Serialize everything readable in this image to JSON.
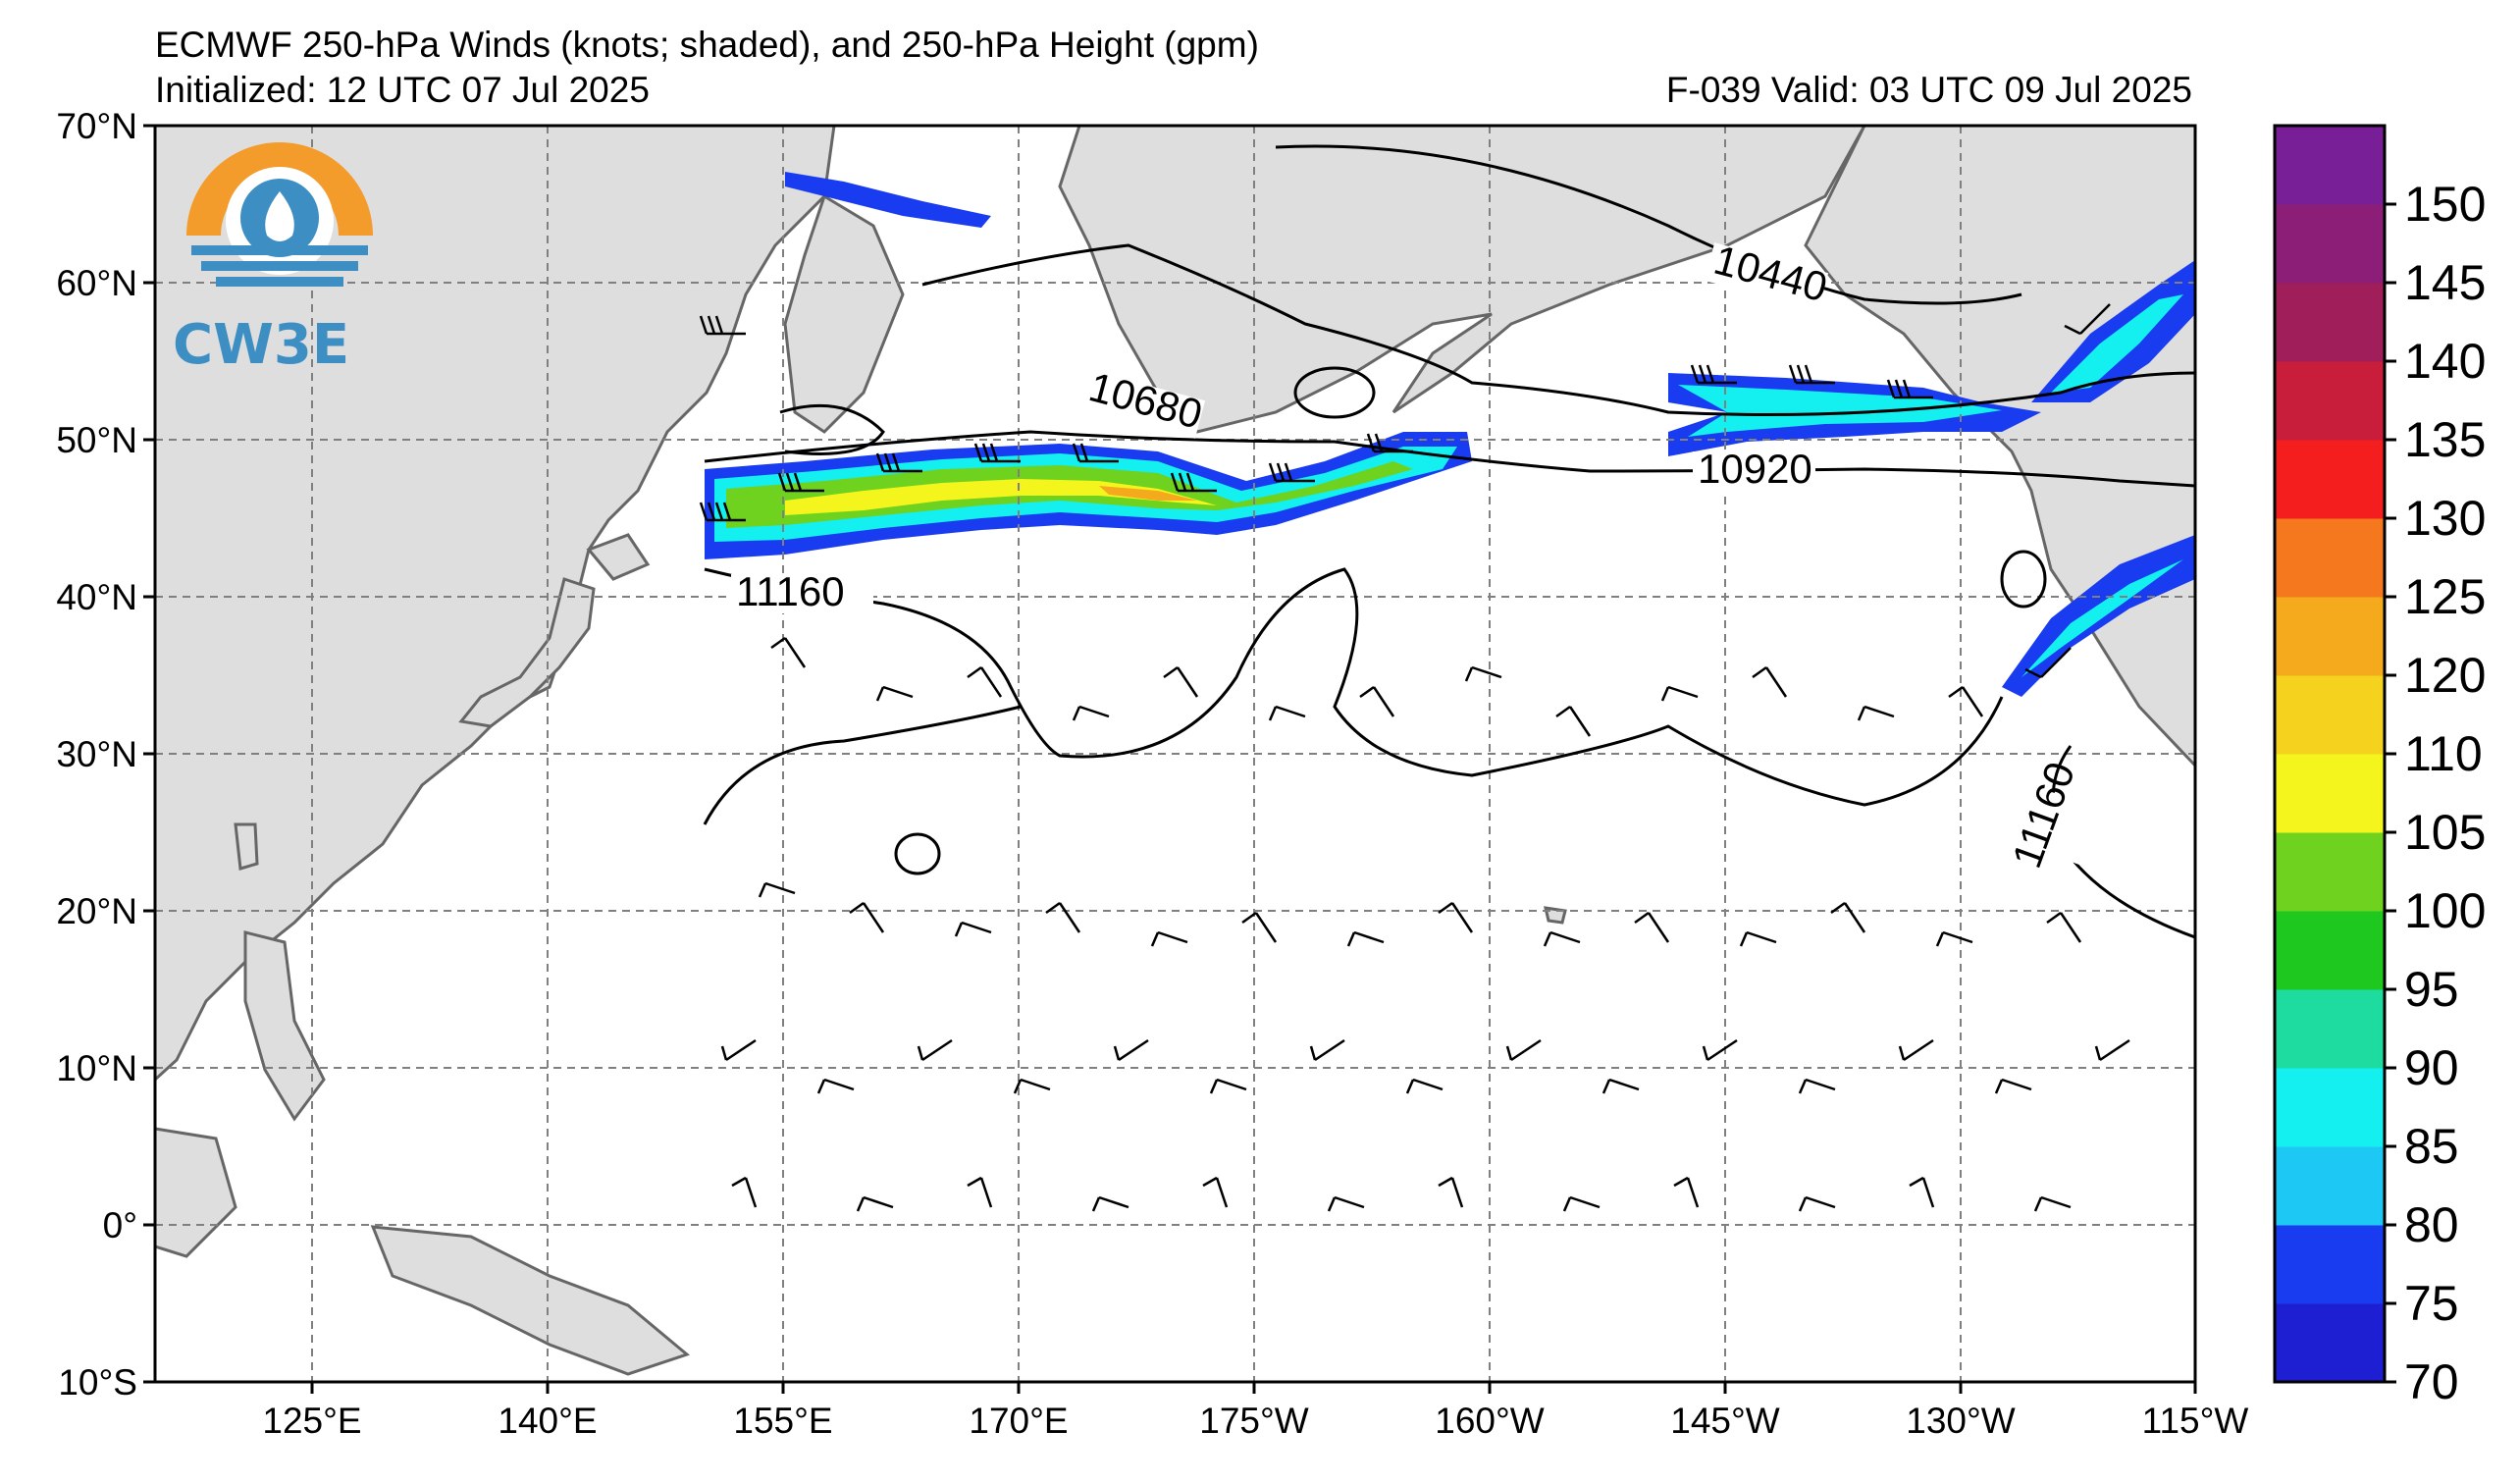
{
  "header": {
    "title": "ECMWF 250-hPa Winds (knots; shaded), and 250-hPa Height (gpm)",
    "initialized": "Initialized: 12 UTC 07 Jul 2025",
    "valid": "F-039  Valid: 03 UTC 09 Jul 2025"
  },
  "logo": {
    "text": "CW3E",
    "colors": {
      "ring": "#f39c2b",
      "blue": "#3d8fc3"
    }
  },
  "axes": {
    "lat_labels": [
      "70°N",
      "60°N",
      "50°N",
      "40°N",
      "30°N",
      "20°N",
      "10°N",
      "0°",
      "10°S"
    ],
    "lon_labels": [
      "125°E",
      "140°E",
      "155°E",
      "170°E",
      "175°W",
      "160°W",
      "145°W",
      "130°W",
      "115°W"
    ]
  },
  "contours": {
    "labels": [
      "10440",
      "10680",
      "10920",
      "11160",
      "11160"
    ]
  },
  "colorbar": {
    "labels": [
      "70",
      "75",
      "80",
      "85",
      "90",
      "95",
      "100",
      "105",
      "110",
      "120",
      "125",
      "130",
      "135",
      "140",
      "145",
      "150"
    ],
    "colors": [
      "#1e1ed2",
      "#1a3cf0",
      "#1ec8f5",
      "#14f0f0",
      "#1edca0",
      "#1ec81e",
      "#6ed21e",
      "#f5f51e",
      "#f5d21e",
      "#f5aa1e",
      "#f5781e",
      "#f51e1e",
      "#c81e3c",
      "#a01e5a",
      "#8c1e78",
      "#781e96"
    ]
  },
  "style": {
    "land": "#dedede",
    "coast": "#666666",
    "grid": "#808080"
  }
}
